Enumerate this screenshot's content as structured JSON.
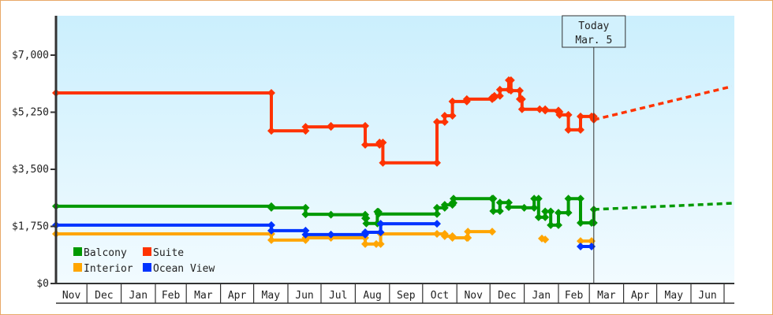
{
  "chart_data": {
    "type": "line",
    "step": true,
    "grid": false,
    "legend_placement": "bottom-left",
    "x_tick_labels": [
      "Nov",
      "Dec",
      "Jan",
      "Feb",
      "Mar",
      "Apr",
      "May",
      "Jun",
      "Jul",
      "Aug",
      "Sep",
      "Oct",
      "Nov",
      "Dec",
      "Jan",
      "Feb",
      "Mar",
      "Apr",
      "May",
      "Jun",
      ""
    ],
    "y_ticks": [
      0,
      1750,
      3500,
      5250,
      7000
    ],
    "y_tick_labels": [
      "$0",
      "$1,750",
      "$3,500",
      "$5,250",
      "$7,000"
    ],
    "ylim": [
      0,
      8200
    ],
    "xlim": [
      "Nov 3",
      "Jul 8"
    ],
    "today": {
      "label": "Today",
      "date_label": "Mar. 5",
      "x": "Mar 5"
    },
    "background_gradient": [
      "#cbeffd",
      "#f2fbff"
    ],
    "series": [
      {
        "name": "Balcony",
        "color": "#009900",
        "points": [
          [
            "Nov 3",
            2370
          ],
          [
            "May 17",
            2320
          ],
          [
            "Jun 17",
            2120
          ],
          [
            "Jul 10",
            2110
          ],
          [
            "Aug 10",
            2000
          ],
          [
            "Aug 11",
            1840
          ],
          [
            "Aug 21",
            2200
          ],
          [
            "Aug 22",
            2130
          ],
          [
            "Oct 14",
            2320
          ],
          [
            "Oct 21",
            2410
          ],
          [
            "Oct 28",
            2470
          ],
          [
            "Oct 29",
            2600
          ],
          [
            "Dec 3",
            2600
          ],
          [
            "Dec 4",
            2220
          ],
          [
            "Dec 10",
            2480
          ],
          [
            "Dec 18",
            2340
          ],
          [
            "Jan 1",
            2320
          ],
          [
            "Jan 10",
            2600
          ],
          [
            "Jan 14",
            2030
          ],
          [
            "Jan 20",
            2210
          ],
          [
            "Jan 25",
            1790
          ],
          [
            "Feb 1",
            2170
          ],
          [
            "Feb 10",
            2600
          ],
          [
            "Feb 21",
            1860
          ],
          [
            "Mar 3",
            1860
          ],
          [
            "Mar 5",
            2270
          ]
        ],
        "forecast": [
          [
            "Mar 5",
            2270
          ],
          [
            "Jul 8",
            2460
          ]
        ]
      },
      {
        "name": "Suite",
        "color": "#ff3300",
        "points": [
          [
            "Nov 3",
            5840
          ],
          [
            "May 17",
            4680
          ],
          [
            "Jun 17",
            4800
          ],
          [
            "Jul 10",
            4830
          ],
          [
            "Aug 10",
            4250
          ],
          [
            "Aug 23",
            4320
          ],
          [
            "Aug 26",
            3700
          ],
          [
            "Oct 14",
            4950
          ],
          [
            "Oct 21",
            5140
          ],
          [
            "Oct 28",
            5580
          ],
          [
            "Nov 10",
            5650
          ],
          [
            "Dec 3",
            5700
          ],
          [
            "Dec 5",
            5750
          ],
          [
            "Dec 10",
            5940
          ],
          [
            "Dec 18",
            6230
          ],
          [
            "Dec 20",
            5910
          ],
          [
            "Dec 28",
            5650
          ],
          [
            "Dec 30",
            5340
          ],
          [
            "Jan 15",
            5340
          ],
          [
            "Jan 20",
            5300
          ],
          [
            "Feb 1",
            5260
          ],
          [
            "Feb 2",
            5170
          ],
          [
            "Feb 10",
            4710
          ],
          [
            "Feb 21",
            5120
          ],
          [
            "Mar 3",
            5120
          ],
          [
            "Mar 5",
            5020
          ]
        ],
        "forecast": [
          [
            "Mar 5",
            5020
          ],
          [
            "Jul 8",
            6040
          ]
        ]
      },
      {
        "name": "Interior",
        "color": "#ffa500",
        "points": [
          [
            "Nov 3",
            1520
          ],
          [
            "May 17",
            1330
          ],
          [
            "Jun 17",
            1400
          ],
          [
            "Jul 10",
            1400
          ],
          [
            "Aug 10",
            1210
          ],
          [
            "Aug 20",
            1210
          ],
          [
            "Aug 24",
            1520
          ],
          [
            "Oct 14",
            1520
          ],
          [
            "Oct 21",
            1450
          ],
          [
            "Oct 28",
            1400
          ],
          [
            "Nov 10",
            1400
          ],
          [
            "Nov 11",
            1590
          ],
          [
            "Dec 3",
            1590
          ],
          [
            "Dec 3",
            null
          ],
          [
            "Jan 17",
            1380
          ],
          [
            "Jan 17",
            null
          ],
          [
            "Jan 20",
            1350
          ],
          [
            "Jan 20",
            null
          ],
          [
            "Feb 21",
            1300
          ],
          [
            "Mar 3",
            1300
          ]
        ]
      },
      {
        "name": "Ocean View",
        "color": "#0033ff",
        "points": [
          [
            "Nov 3",
            1790
          ],
          [
            "May 17",
            1620
          ],
          [
            "Jun 17",
            1500
          ],
          [
            "Jul 10",
            1500
          ],
          [
            "Aug 10",
            1570
          ],
          [
            "Aug 24",
            1830
          ],
          [
            "Oct 14",
            1830
          ],
          [
            "Oct 14",
            null
          ],
          [
            "Feb 21",
            1135
          ],
          [
            "Mar 3",
            1135
          ]
        ]
      }
    ]
  }
}
